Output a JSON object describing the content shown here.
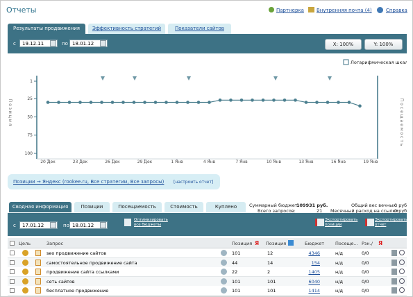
{
  "header": {
    "title": "Отчеты",
    "links": [
      "Партнерка",
      "Внутренняя почта (4)",
      "Справка"
    ]
  },
  "tabs": [
    "Результаты продвижения",
    "Эффективность стратегий",
    "Показатели сайтов"
  ],
  "filter": {
    "from_label": "с",
    "from": "19.12.11",
    "to_label": "по",
    "to": "18.01.12",
    "zoom_x": "X: 100%",
    "zoom_y": "Y: 100%"
  },
  "chart_data": {
    "type": "line",
    "categories": [
      "20 Дек",
      null,
      null,
      "23 Дек",
      null,
      null,
      "26 Дек",
      null,
      null,
      "29 Дек",
      null,
      null,
      "1 Янв",
      null,
      null,
      "4 Янв",
      null,
      null,
      "7 Янв",
      null,
      null,
      "10 Янв",
      null,
      null,
      "13 Янв",
      null,
      null,
      "16 Янв",
      null,
      null,
      "19 Янв"
    ],
    "values": [
      30,
      30,
      30,
      30,
      30,
      30,
      30,
      30,
      30,
      30,
      30,
      30,
      30,
      30,
      30,
      30,
      27,
      27,
      27,
      27,
      27,
      27,
      27,
      27,
      30,
      30,
      30,
      30,
      30,
      35,
      null
    ],
    "color": "#4b7f8f",
    "y_label": "Позиция",
    "y2_label": "Посещаемость",
    "log_scale_label": "Логарифмическая шкала",
    "log_scale": false,
    "ylim": [
      100,
      1
    ],
    "yticks": [
      1,
      25,
      50,
      75,
      100
    ]
  },
  "report_bar": {
    "text": "Позиции → Яндекс (rookee.ru, Все стратегии, Все запросы)",
    "link": "[настроить отчет]"
  },
  "summary_tabs": [
    "Сводная информация",
    "Позиции",
    "Посещаемость",
    "Стоимость",
    "Куплено"
  ],
  "summary": {
    "budget_label": "Суммарный бюджет:",
    "budget": "109931 руб.",
    "queries_label": "Всего запросов:",
    "queries": "21",
    "weight_label": "Общий вес вечных:",
    "weight": "0 руб",
    "monthly_label": "Месячный расход на ссылки:",
    "monthly": "0 руб"
  },
  "toolbar": {
    "from_label": "с",
    "from": "17.01.12",
    "to_label": "по",
    "to": "18.01.12",
    "optimize": "Оптимизировать все бюджеты",
    "export_positions": "Экспортировать позиции",
    "export_report": "Экспортировать отчет"
  },
  "table": {
    "headers": [
      "Цель",
      "Запрос",
      "Позиция",
      "Позиция",
      "Бюджет",
      "Посеще...",
      "Рзн./"
    ],
    "rows": [
      [
        "seo продвижение сайтов",
        "101",
        "12",
        "4346",
        "н/д",
        "0/0"
      ],
      [
        "самостоятельное продвижение сайта",
        "44",
        "14",
        "154",
        "н/д",
        "0/0"
      ],
      [
        "продвижение сайта ссылками",
        "22",
        "2",
        "1405",
        "н/д",
        "0/0"
      ],
      [
        "сеть сайтов",
        "101",
        "101",
        "6040",
        "н/д",
        "0/0"
      ],
      [
        "бесплатное продвижение",
        "101",
        "101",
        "1414",
        "н/д",
        "0/0"
      ]
    ]
  }
}
